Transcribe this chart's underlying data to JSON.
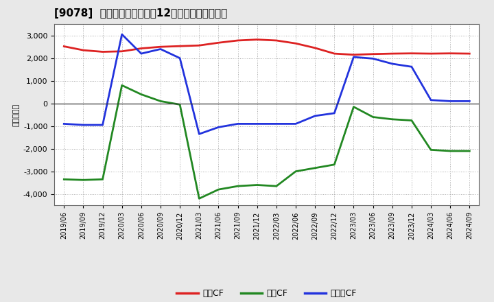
{
  "title": "[9078]  キャッシュフローの12か月移動合計の推移",
  "ylabel": "（百万円）",
  "background_color": "#e8e8e8",
  "plot_bg_color": "#ffffff",
  "grid_color": "#aaaaaa",
  "dates": [
    "2019/06",
    "2019/09",
    "2019/12",
    "2020/03",
    "2020/06",
    "2020/09",
    "2020/12",
    "2021/03",
    "2021/06",
    "2021/09",
    "2021/12",
    "2022/03",
    "2022/06",
    "2022/09",
    "2022/12",
    "2023/03",
    "2023/06",
    "2023/09",
    "2023/12",
    "2024/03",
    "2024/06",
    "2024/09"
  ],
  "eigyo_cf": [
    2520,
    2350,
    2280,
    2300,
    2430,
    2500,
    2530,
    2560,
    2680,
    2780,
    2820,
    2780,
    2650,
    2450,
    2200,
    2150,
    2180,
    2200,
    2210,
    2200,
    2210,
    2200
  ],
  "toshi_cf": [
    -3350,
    -3380,
    -3350,
    800,
    400,
    100,
    -50,
    -4200,
    -3800,
    -3650,
    -3600,
    -3650,
    -3000,
    -2850,
    -2700,
    -150,
    -600,
    -700,
    -750,
    -2050,
    -2100,
    -2100
  ],
  "free_cf": [
    -900,
    -950,
    -950,
    3050,
    2200,
    2400,
    2000,
    -1350,
    -1050,
    -900,
    -900,
    -900,
    -900,
    -550,
    -430,
    2050,
    1980,
    1750,
    1620,
    150,
    100,
    100
  ],
  "eigyo_color": "#dd2222",
  "toshi_color": "#228822",
  "free_color": "#2233dd",
  "ylim": [
    -4500,
    3500
  ],
  "yticks": [
    -4000,
    -3000,
    -2000,
    -1000,
    0,
    1000,
    2000,
    3000
  ],
  "legend_labels": [
    "営業CF",
    "投資CF",
    "フリーCF"
  ]
}
